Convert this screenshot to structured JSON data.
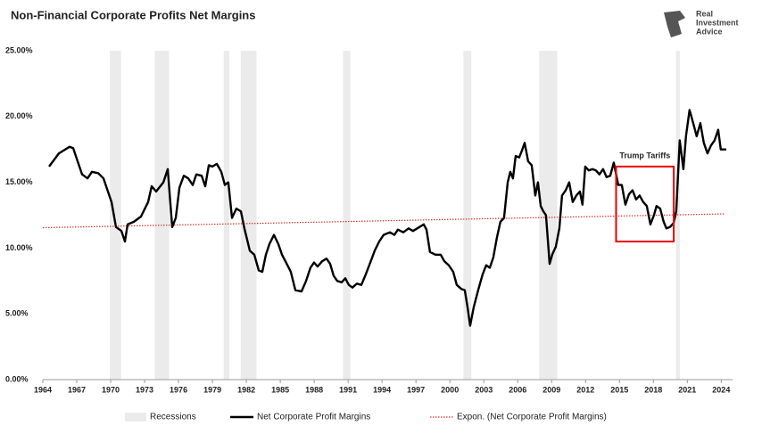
{
  "chart_data": {
    "type": "line",
    "title": "Non-Financial Corporate Profits Net Margins",
    "logo": [
      "Real",
      "Investment",
      "Advice"
    ],
    "xlim": [
      1964,
      2025
    ],
    "xticks": [
      1964,
      1967,
      1970,
      1973,
      1976,
      1979,
      1982,
      1985,
      1988,
      1991,
      1994,
      1997,
      2000,
      2003,
      2006,
      2009,
      2012,
      2015,
      2018,
      2021,
      2024
    ],
    "ylim": [
      0,
      25
    ],
    "yticks": [
      {
        "value": 0,
        "label": "0.00%"
      },
      {
        "value": 5,
        "label": "5.00%"
      },
      {
        "value": 10,
        "label": "10.00%"
      },
      {
        "value": 15,
        "label": "15.00%"
      },
      {
        "value": 20,
        "label": "20.00%"
      },
      {
        "value": 25,
        "label": "25.00%"
      }
    ],
    "grid": false,
    "recessions": {
      "name": "Recessions",
      "color": "#ebebeb",
      "spans": [
        [
          1969.92,
          1970.92
        ],
        [
          1973.9,
          1975.17
        ],
        [
          1980.0,
          1980.5
        ],
        [
          1981.5,
          1982.9
        ],
        [
          1990.55,
          1991.2
        ],
        [
          2001.2,
          2001.9
        ],
        [
          2007.9,
          2009.5
        ],
        [
          2020.0,
          2020.33
        ]
      ]
    },
    "series": [
      {
        "name": "Net Corporate Profit Margins",
        "color": "#000000",
        "x": [
          1964.55,
          1965.42,
          1966.37,
          1966.68,
          1967.47,
          1967.95,
          1968.34,
          1968.89,
          1969.37,
          1970.08,
          1970.47,
          1970.95,
          1971.26,
          1971.5,
          1972.05,
          1972.68,
          1973.31,
          1973.63,
          1974.02,
          1974.66,
          1975.05,
          1975.44,
          1975.76,
          1976.08,
          1976.47,
          1976.86,
          1977.26,
          1977.57,
          1978.05,
          1978.36,
          1978.68,
          1978.99,
          1979.39,
          1979.78,
          1980.1,
          1980.41,
          1980.73,
          1981.12,
          1981.52,
          1981.83,
          1982.31,
          1982.7,
          1983.1,
          1983.41,
          1983.73,
          1984.04,
          1984.44,
          1984.83,
          1985.15,
          1985.46,
          1985.93,
          1986.33,
          1986.88,
          1987.28,
          1987.67,
          1987.99,
          1988.3,
          1988.7,
          1989.09,
          1989.41,
          1989.72,
          1990.04,
          1990.43,
          1990.75,
          1991.06,
          1991.38,
          1991.77,
          1992.17,
          1992.56,
          1992.96,
          1993.35,
          1993.75,
          1994.14,
          1994.69,
          1995.09,
          1995.4,
          1995.88,
          1996.35,
          1996.74,
          1997.3,
          1997.69,
          1997.93,
          1998.24,
          1998.72,
          1999.19,
          1999.51,
          1999.9,
          2000.29,
          2000.61,
          2001.0,
          2001.32,
          2001.56,
          2001.79,
          2002.11,
          2002.5,
          2002.9,
          2003.21,
          2003.53,
          2003.84,
          2004.16,
          2004.47,
          2004.79,
          2005.11,
          2005.34,
          2005.58,
          2005.82,
          2006.13,
          2006.37,
          2006.61,
          2006.92,
          2007.24,
          2007.55,
          2007.79,
          2008.03,
          2008.26,
          2008.5,
          2008.82,
          2009.05,
          2009.37,
          2009.68,
          2009.92,
          2010.24,
          2010.55,
          2010.87,
          2011.18,
          2011.5,
          2011.73,
          2011.97,
          2012.29,
          2012.6,
          2012.92,
          2013.23,
          2013.55,
          2013.86,
          2014.18,
          2014.5,
          2014.89,
          2015.21,
          2015.52,
          2015.84,
          2016.15,
          2016.47,
          2016.78,
          2017.1,
          2017.42,
          2017.73,
          2018.05,
          2018.28,
          2018.6,
          2018.91,
          2019.15,
          2019.46,
          2019.78,
          2020.02,
          2020.33,
          2020.65,
          2020.88,
          2021.2,
          2021.52,
          2021.83,
          2022.15,
          2022.46,
          2022.78,
          2023.09,
          2023.41,
          2023.73,
          2023.96,
          2024.44
        ],
        "values": [
          16.2,
          17.2,
          17.7,
          17.6,
          15.6,
          15.3,
          15.8,
          15.7,
          15.3,
          13.5,
          11.6,
          11.3,
          10.5,
          11.8,
          12.0,
          12.4,
          13.5,
          14.7,
          14.3,
          15.0,
          16.0,
          11.6,
          12.3,
          14.6,
          15.5,
          15.3,
          14.8,
          15.6,
          15.5,
          14.7,
          16.3,
          16.2,
          16.4,
          15.8,
          14.8,
          15.0,
          12.3,
          13.0,
          12.8,
          11.5,
          9.8,
          9.5,
          8.3,
          8.2,
          9.5,
          10.3,
          11.0,
          10.3,
          9.5,
          9.0,
          8.2,
          6.8,
          6.7,
          7.5,
          8.5,
          8.9,
          8.6,
          9.0,
          9.2,
          8.8,
          7.9,
          7.5,
          7.4,
          7.7,
          7.2,
          7.0,
          7.3,
          7.2,
          8.0,
          8.9,
          9.8,
          10.5,
          11.0,
          11.2,
          11.0,
          11.4,
          11.2,
          11.5,
          11.3,
          11.6,
          11.8,
          11.4,
          9.7,
          9.5,
          9.5,
          9.0,
          8.7,
          8.2,
          7.2,
          6.9,
          6.8,
          5.5,
          4.1,
          5.5,
          6.8,
          8.0,
          8.7,
          8.5,
          9.3,
          10.8,
          12.0,
          12.3,
          15.0,
          15.8,
          15.3,
          17.0,
          16.9,
          17.4,
          18.0,
          16.6,
          16.3,
          14.0,
          15.0,
          13.2,
          12.8,
          12.5,
          8.8,
          9.5,
          10.1,
          11.5,
          14.0,
          14.4,
          15.0,
          13.5,
          14.0,
          14.3,
          13.3,
          16.2,
          15.9,
          16.0,
          15.9,
          15.6,
          16.0,
          15.4,
          15.5,
          16.5,
          14.8,
          14.8,
          13.3,
          14.1,
          14.4,
          13.7,
          14.0,
          13.5,
          13.2,
          11.8,
          12.5,
          13.2,
          13.0,
          12.0,
          11.5,
          11.6,
          11.9,
          12.8,
          18.2,
          16.0,
          18.5,
          20.5,
          19.5,
          18.5,
          19.5,
          18.0,
          17.2,
          17.8,
          18.2,
          19.0,
          17.5,
          17.5
        ]
      },
      {
        "name": "Expon. (Net Corporate Profit Margins)",
        "color": "#e03030",
        "dashed": true,
        "x": [
          1964,
          2024.3
        ],
        "values": [
          11.55,
          12.6
        ]
      }
    ],
    "annotation": {
      "text": "Trump Tariffs",
      "color": "#ee0000",
      "xlim": [
        2014.7,
        2019.8
      ],
      "ylim": [
        10.5,
        16.2
      ]
    }
  }
}
